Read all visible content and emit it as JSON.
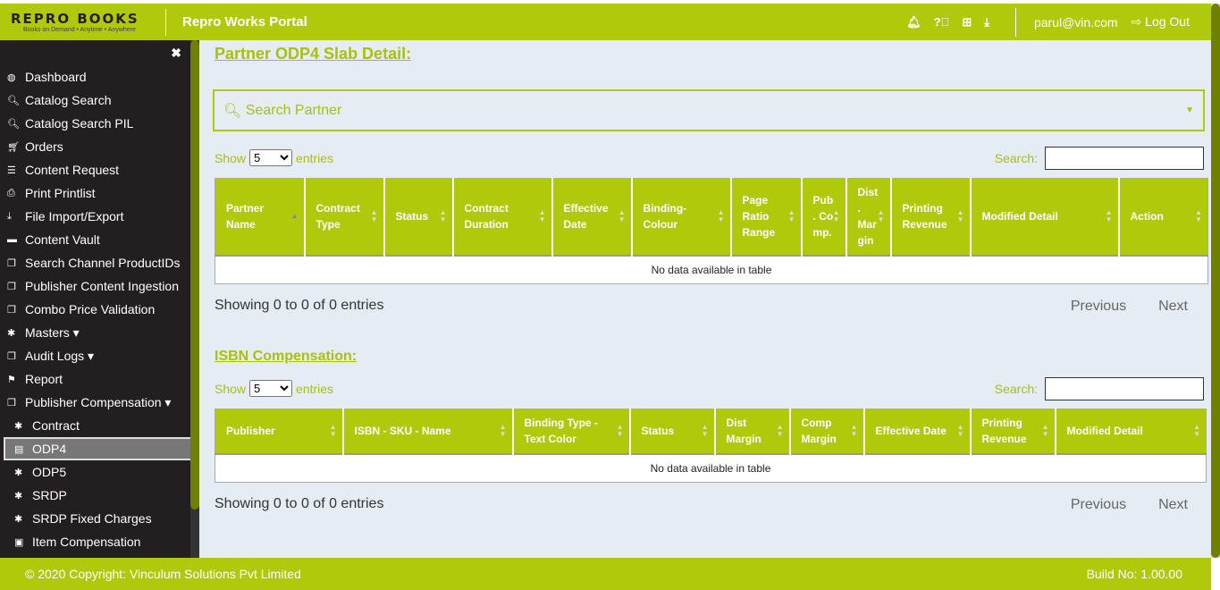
{
  "header": {
    "logo_text": "REPRO BOOKS",
    "logo_tagline": "Books on Demand • Anytime • Anywhere",
    "portal_title": "Repro Works Portal",
    "user": "parul@vin.com",
    "logout": "Log Out",
    "icons": [
      "bell-icon",
      "question-icon",
      "plus-square-icon",
      "download-icon"
    ]
  },
  "sidebar": {
    "items": [
      {
        "label": "Dashboard",
        "icon": "◍"
      },
      {
        "label": "Catalog Search",
        "icon": "🔍︎"
      },
      {
        "label": "Catalog Search PIL",
        "icon": "🔍︎"
      },
      {
        "label": "Orders",
        "icon": "🛒︎"
      },
      {
        "label": "Content Request",
        "icon": "☰"
      },
      {
        "label": "Print Printlist",
        "icon": "⎙"
      },
      {
        "label": "File Import/Export",
        "icon": "⤓"
      },
      {
        "label": "Content Vault",
        "icon": "▬"
      },
      {
        "label": "Search Channel ProductIDs",
        "icon": "❐"
      },
      {
        "label": "Publisher Content Ingestion",
        "icon": "❐"
      },
      {
        "label": "Combo Price Validation",
        "icon": "❐"
      },
      {
        "label": "Masters ▾",
        "icon": "✱"
      },
      {
        "label": "Audit Logs ▾",
        "icon": "❐"
      },
      {
        "label": "Report",
        "icon": "⚑"
      },
      {
        "label": "Publisher Compensation ▾",
        "icon": "❐"
      },
      {
        "label": "Contract",
        "icon": "✱",
        "sub": true
      },
      {
        "label": "ODP4",
        "icon": "▤",
        "sub": true,
        "active": true
      },
      {
        "label": "ODP5",
        "icon": "✱",
        "sub": true
      },
      {
        "label": "SRDP",
        "icon": "✱",
        "sub": true
      },
      {
        "label": "SRDP Fixed Charges",
        "icon": "✱",
        "sub": true
      },
      {
        "label": "Item Compensation",
        "icon": "▣",
        "sub": true
      }
    ]
  },
  "section1": {
    "title": "Partner ODP4 Slab Detail:",
    "search_partner_placeholder": "Search Partner",
    "show": "Show",
    "entries_value": "5",
    "entries": "entries",
    "search_label": "Search:",
    "columns": [
      "Partner Name",
      "Contract Type",
      "Status",
      "Contract Duration",
      "Effective Date",
      "Binding-Colour",
      "Page Ratio Range",
      "Pub . Co mp.",
      "Dist . Mar gin",
      "Printing Revenue",
      "Modified Detail",
      "Action"
    ],
    "empty": "No data available in table",
    "info": "Showing 0 to 0 of 0 entries",
    "previous": "Previous",
    "next": "Next"
  },
  "section2": {
    "title": "ISBN Compensation:",
    "show": "Show",
    "entries_value": "5",
    "entries": "entries",
    "search_label": "Search:",
    "columns": [
      "Publisher",
      "ISBN - SKU - Name",
      "Binding Type - Text Color",
      "Status",
      "Dist Margin",
      "Comp Margin",
      "Effective Date",
      "Printing Revenue",
      "Modified Detail"
    ],
    "empty": "No data available in table",
    "info": "Showing 0 to 0 of 0 entries",
    "previous": "Previous",
    "next": "Next"
  },
  "footer": {
    "copyright": "© 2020 Copyright: Vinculum Solutions Pvt Limited",
    "build": "Build No: 1.00.00"
  },
  "colors": {
    "accent": "#b0c90a",
    "sidebar": "#231f20",
    "content_bg": "#e6ecf4"
  }
}
